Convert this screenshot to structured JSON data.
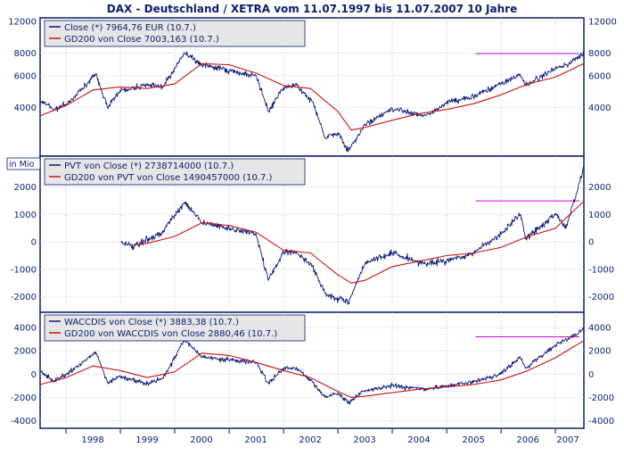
{
  "title": "DAX - Deutschland / XETRA vom 11.07.1997 bis 11.07.2007 10 Jahre",
  "colors": {
    "frame": "#0b1f6e",
    "text": "#0b1f6e",
    "series_main": "#0b1a7a",
    "series_avg": "#d01010",
    "ref_line": "#cc00cc",
    "grid": "#9aa6c6",
    "legend_bg": "#e6e6e6"
  },
  "x_axis": {
    "labels": [
      "1998",
      "1999",
      "2000",
      "2001",
      "2002",
      "2003",
      "2004",
      "2005",
      "2006",
      "2007"
    ]
  },
  "chart_data": [
    {
      "type": "line",
      "panel": "price",
      "unit_label": "",
      "x_range": [
        "1997-07-11",
        "2007-07-11"
      ],
      "ylim": [
        2200,
        12000
      ],
      "y_scale": "log",
      "y_ticks": [
        4000,
        6000,
        8000,
        12000
      ],
      "y_tick_labels": [
        "4000",
        "6000",
        "8000",
        "12000"
      ],
      "reference_line": 7964.76,
      "legend": [
        "Close (*) 7964,76 EUR (10.7.)",
        "GD200 von Close 7003,163 (10.7.)"
      ],
      "series": [
        {
          "name": "Close",
          "role": "main",
          "x": [
            "1997-07-11",
            "1997-10-15",
            "1998-01-10",
            "1998-07-20",
            "1998-10-08",
            "1998-12-31",
            "1999-07-01",
            "1999-10-15",
            "2000-03-07",
            "2000-06-30",
            "2000-12-31",
            "2001-06-30",
            "2001-09-21",
            "2001-12-31",
            "2002-04-01",
            "2002-07-15",
            "2002-10-09",
            "2002-12-31",
            "2003-03-12",
            "2003-06-30",
            "2003-12-31",
            "2004-08-13",
            "2004-12-31",
            "2005-06-30",
            "2005-12-31",
            "2006-05-09",
            "2006-06-14",
            "2006-12-31",
            "2007-04-01",
            "2007-07-11"
          ],
          "values": [
            4400,
            3900,
            4200,
            6100,
            4000,
            5000,
            5300,
            5200,
            8064,
            6900,
            6400,
            6000,
            3800,
            5160,
            5300,
            4300,
            2700,
            2900,
            2300,
            3200,
            3965,
            3600,
            4256,
            4600,
            5400,
            6100,
            5300,
            6600,
            7000,
            7964.76
          ]
        },
        {
          "name": "GD200 von Close",
          "role": "average",
          "x": [
            "1997-07-11",
            "1998-01-01",
            "1998-07-01",
            "1999-01-01",
            "1999-07-01",
            "2000-01-01",
            "2000-07-01",
            "2001-01-01",
            "2001-07-01",
            "2002-01-01",
            "2002-07-01",
            "2003-01-01",
            "2003-04-01",
            "2003-07-01",
            "2004-01-01",
            "2004-07-01",
            "2005-01-01",
            "2005-07-01",
            "2006-01-01",
            "2006-07-01",
            "2007-01-01",
            "2007-07-11"
          ],
          "values": [
            3600,
            4100,
            5000,
            5200,
            5100,
            5400,
            7000,
            6900,
            6200,
            5300,
            5100,
            3800,
            3000,
            3100,
            3400,
            3700,
            3900,
            4200,
            4700,
            5400,
            5900,
            7003.163
          ]
        }
      ]
    },
    {
      "type": "line",
      "panel": "pvt",
      "unit_label": "in Mio",
      "x_range": [
        "1997-07-11",
        "2007-07-11"
      ],
      "ylim": [
        -2500,
        3000
      ],
      "y_scale": "linear",
      "y_ticks": [
        -2000,
        -1000,
        0,
        1000,
        2000
      ],
      "y_tick_labels": [
        "-2000",
        "-1000",
        "0",
        "1000",
        "2000"
      ],
      "reference_line": 1500,
      "legend": [
        "PVT von Close (*) 2738714000 (10.7.)",
        "GD200 von PVT von Close 1490457000 (10.7.)"
      ],
      "series": [
        {
          "name": "PVT von Close",
          "role": "main",
          "x": [
            "1999-01-01",
            "1999-04-01",
            "1999-07-01",
            "1999-10-01",
            "2000-03-07",
            "2000-06-30",
            "2000-12-31",
            "2001-06-30",
            "2001-09-21",
            "2001-12-31",
            "2002-04-01",
            "2002-07-15",
            "2002-10-09",
            "2003-03-12",
            "2003-06-30",
            "2003-12-31",
            "2004-08-13",
            "2004-12-31",
            "2005-06-30",
            "2005-12-31",
            "2006-05-09",
            "2006-06-14",
            "2006-12-31",
            "2007-03-14",
            "2007-07-11"
          ],
          "values": [
            0,
            -200,
            100,
            300,
            1450,
            700,
            500,
            300,
            -1400,
            -350,
            -400,
            -900,
            -1900,
            -2200,
            -800,
            -400,
            -800,
            -700,
            -400,
            300,
            1000,
            100,
            1000,
            500,
            2738.714
          ]
        },
        {
          "name": "GD200 von PVT von Close",
          "role": "average",
          "x": [
            "1999-04-01",
            "1999-07-01",
            "2000-01-01",
            "2000-07-01",
            "2001-01-01",
            "2001-07-01",
            "2002-01-01",
            "2002-07-01",
            "2003-01-01",
            "2003-04-01",
            "2003-07-01",
            "2004-01-01",
            "2004-07-01",
            "2005-01-01",
            "2005-07-01",
            "2006-01-01",
            "2006-07-01",
            "2007-01-01",
            "2007-07-11"
          ],
          "values": [
            -100,
            -50,
            200,
            700,
            600,
            350,
            -300,
            -400,
            -1200,
            -1500,
            -1400,
            -900,
            -700,
            -500,
            -400,
            -200,
            200,
            500,
            1490.457
          ]
        }
      ]
    },
    {
      "type": "line",
      "panel": "waccdis",
      "unit_label": "",
      "x_range": [
        "1997-07-11",
        "2007-07-11"
      ],
      "ylim": [
        -4500,
        5000
      ],
      "y_scale": "linear",
      "y_ticks": [
        -4000,
        -2000,
        0,
        2000,
        4000
      ],
      "y_tick_labels": [
        "-4000",
        "-2000",
        "0",
        "2000",
        "4000"
      ],
      "reference_line": 3200,
      "legend": [
        "WACCDIS von Close (*) 3883,38 (10.7.)",
        "GD200 von WACCDIS von Close 2880,46 (10.7.)"
      ],
      "series": [
        {
          "name": "WACCDIS von Close",
          "role": "main",
          "x": [
            "1997-07-11",
            "1997-10-15",
            "1998-01-10",
            "1998-07-20",
            "1998-10-08",
            "1998-12-31",
            "1999-07-01",
            "1999-10-15",
            "2000-03-07",
            "2000-06-30",
            "2000-12-31",
            "2001-06-30",
            "2001-09-21",
            "2001-12-31",
            "2002-04-01",
            "2002-07-15",
            "2002-10-09",
            "2002-12-31",
            "2003-03-12",
            "2003-06-30",
            "2003-12-31",
            "2004-08-13",
            "2004-12-31",
            "2005-06-30",
            "2005-12-31",
            "2006-05-09",
            "2006-06-14",
            "2006-12-31",
            "2007-04-01",
            "2007-07-11"
          ],
          "values": [
            200,
            -600,
            0,
            1900,
            -700,
            -200,
            -800,
            -400,
            3000,
            1500,
            1200,
            1000,
            -800,
            500,
            500,
            -700,
            -2000,
            -1600,
            -2500,
            -1400,
            -1000,
            -1300,
            -1000,
            -700,
            0,
            1500,
            500,
            2500,
            3000,
            3883.38
          ]
        },
        {
          "name": "GD200 von WACCDIS von Close",
          "role": "average",
          "x": [
            "1997-07-11",
            "1998-01-01",
            "1998-07-01",
            "1999-01-01",
            "1999-07-01",
            "2000-01-01",
            "2000-07-01",
            "2001-01-01",
            "2001-07-01",
            "2002-01-01",
            "2002-07-01",
            "2003-01-01",
            "2003-04-01",
            "2003-07-01",
            "2004-01-01",
            "2004-07-01",
            "2005-01-01",
            "2005-07-01",
            "2006-01-01",
            "2006-07-01",
            "2007-01-01",
            "2007-07-11"
          ],
          "values": [
            -900,
            -300,
            700,
            300,
            -300,
            200,
            1800,
            1600,
            1000,
            300,
            -300,
            -1500,
            -2000,
            -1900,
            -1600,
            -1300,
            -1100,
            -900,
            -500,
            300,
            1400,
            2880.46
          ]
        }
      ]
    }
  ]
}
